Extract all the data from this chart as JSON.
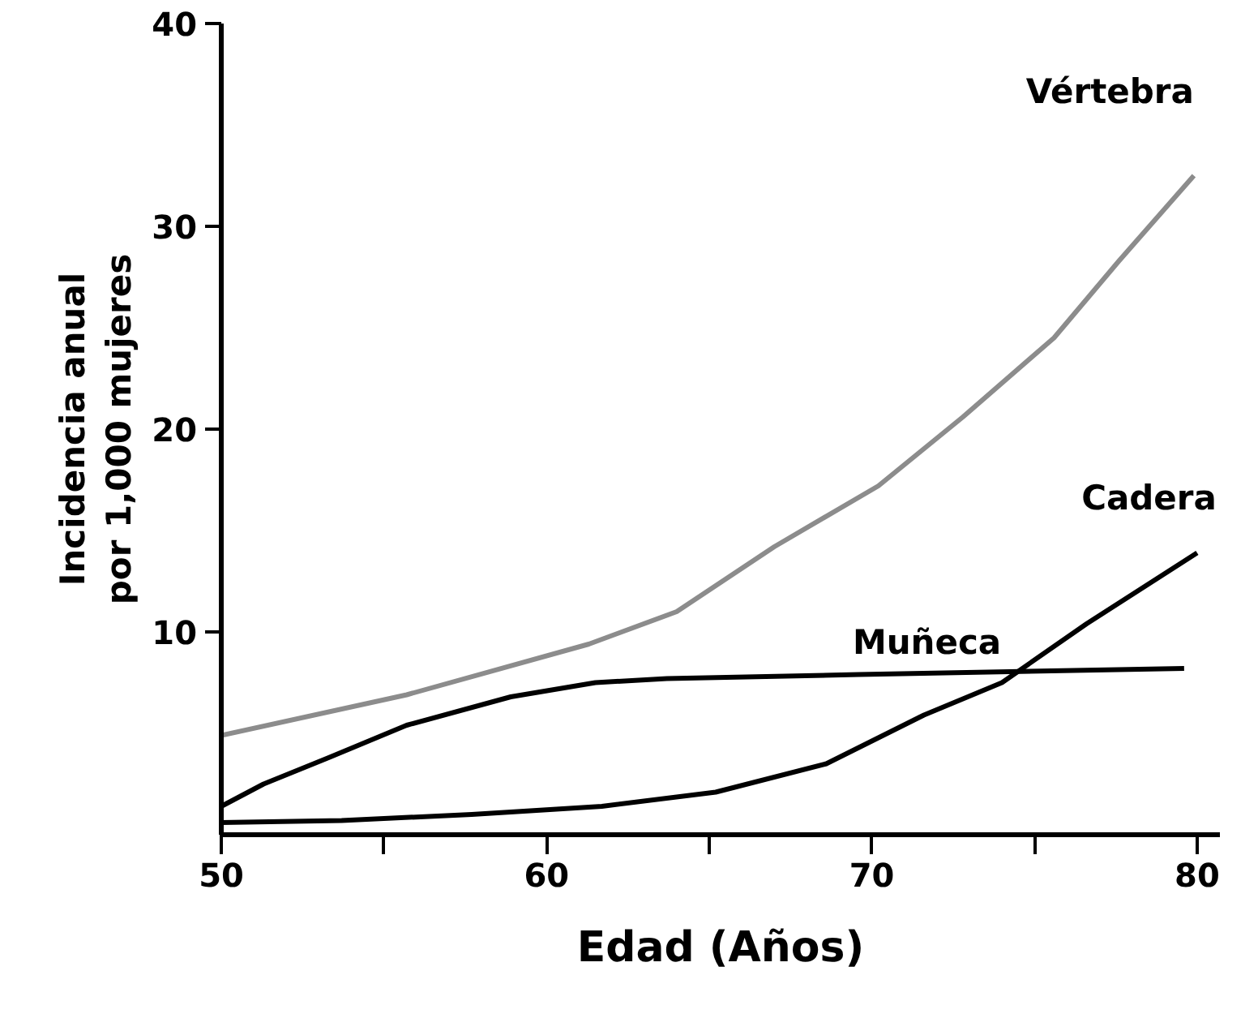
{
  "chart_data": {
    "type": "line",
    "xlabel": "Edad (Años)",
    "ylabel": "Incidencia anual\npor 1,000 mujeres",
    "xlim": [
      50,
      80.7
    ],
    "ylim": [
      0,
      40
    ],
    "xticks": [
      50,
      {
        "value": 55,
        "label": null
      },
      60,
      {
        "value": 65,
        "label": null
      },
      70,
      {
        "value": 75,
        "label": null
      },
      80
    ],
    "yticks": [
      10,
      20,
      30,
      40
    ],
    "grid": false,
    "marker": "none",
    "line_style": "solid",
    "series": [
      {
        "name": "Vértebra",
        "color": "#8c8c8c",
        "x": [
          50,
          55.7,
          61.3,
          64.0,
          67.0,
          70.2,
          72.8,
          75.6,
          77.6,
          79.9
        ],
        "values": [
          4.9,
          6.9,
          9.4,
          11.0,
          14.2,
          17.2,
          20.6,
          24.5,
          28.3,
          32.5
        ]
      },
      {
        "name": "Cadera",
        "color": "#000000",
        "x": [
          50,
          53.7,
          57.7,
          61.7,
          65.2,
          68.6,
          71.6,
          74.0,
          76.6,
          80
        ],
        "values": [
          0.6,
          0.7,
          1.0,
          1.4,
          2.1,
          3.5,
          5.9,
          7.5,
          10.4,
          13.9
        ]
      },
      {
        "name": "Muñeca",
        "color": "#000000",
        "x": [
          50,
          51.3,
          53.3,
          55.7,
          58.9,
          61.5,
          63.7,
          69.6,
          79.6
        ],
        "values": [
          1.4,
          2.5,
          3.8,
          5.4,
          6.8,
          7.5,
          7.7,
          7.9,
          8.2
        ]
      }
    ]
  }
}
